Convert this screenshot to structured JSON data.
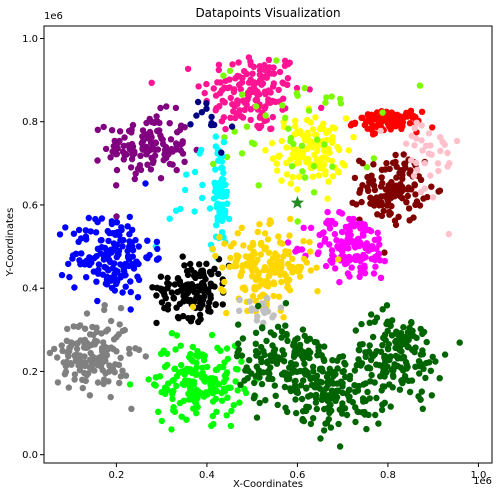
{
  "chart_data": {
    "type": "scatter",
    "title": "Datapoints Visualization",
    "xlabel": "X-Coordinates",
    "ylabel": "Y-Coordinates",
    "x_offset_label": "1e6",
    "y_offset_label": "1e6",
    "xlim": [
      0.04,
      1.03
    ],
    "ylim": [
      -0.02,
      1.03
    ],
    "x_ticks": [
      0.2,
      0.4,
      0.6,
      0.8,
      1.0
    ],
    "x_tick_labels": [
      "0.2",
      "0.4",
      "0.6",
      "0.8",
      "1.0"
    ],
    "y_ticks": [
      0.0,
      0.2,
      0.4,
      0.6,
      0.8,
      1.0
    ],
    "y_tick_labels": [
      "0.0",
      "0.2",
      "0.4",
      "0.6",
      "0.8",
      "1.0"
    ],
    "grid": false,
    "legend": "none",
    "clusters": [
      {
        "color": "#ff1493",
        "center": [
          0.5,
          0.87
        ],
        "spread": [
          0.055,
          0.05
        ],
        "count": 150
      },
      {
        "color": "#800080",
        "center": [
          0.27,
          0.74
        ],
        "spread": [
          0.045,
          0.04
        ],
        "count": 130
      },
      {
        "color": "#ffff00",
        "center": [
          0.63,
          0.73
        ],
        "spread": [
          0.04,
          0.04
        ],
        "count": 120
      },
      {
        "color": "#ff0000",
        "center": [
          0.8,
          0.8
        ],
        "spread": [
          0.035,
          0.012
        ],
        "count": 110
      },
      {
        "color": "#7cfc00",
        "center": [
          0.6,
          0.78
        ],
        "spread": [
          0.09,
          0.08
        ],
        "count": 45
      },
      {
        "color": "#800000",
        "center": [
          0.81,
          0.64
        ],
        "spread": [
          0.035,
          0.04
        ],
        "count": 120
      },
      {
        "color": "#ffc0cb",
        "center": [
          0.88,
          0.71
        ],
        "spread": [
          0.04,
          0.06
        ],
        "count": 35
      },
      {
        "color": "#00ffff",
        "center": [
          0.43,
          0.62
        ],
        "spread": [
          0.01,
          0.06
        ],
        "count": 70
      },
      {
        "color": "#00ffff",
        "center": [
          0.35,
          0.61
        ],
        "spread": [
          0.04,
          0.05
        ],
        "count": 15
      },
      {
        "color": "#000080",
        "center": [
          0.4,
          0.79
        ],
        "spread": [
          0.025,
          0.04
        ],
        "count": 12
      },
      {
        "color": "#0000ff",
        "center": [
          0.19,
          0.48
        ],
        "spread": [
          0.045,
          0.05
        ],
        "count": 160
      },
      {
        "color": "#ff00ff",
        "center": [
          0.72,
          0.5
        ],
        "spread": [
          0.045,
          0.04
        ],
        "count": 140
      },
      {
        "color": "#000000",
        "center": [
          0.37,
          0.4
        ],
        "spread": [
          0.04,
          0.035
        ],
        "count": 130
      },
      {
        "color": "#ffd700",
        "center": [
          0.53,
          0.45
        ],
        "spread": [
          0.05,
          0.045
        ],
        "count": 170
      },
      {
        "color": "#c0c0c0",
        "center": [
          0.51,
          0.34
        ],
        "spread": [
          0.03,
          0.02
        ],
        "count": 20
      },
      {
        "color": "#808080",
        "center": [
          0.15,
          0.24
        ],
        "spread": [
          0.04,
          0.045
        ],
        "count": 160
      },
      {
        "color": "#00ff00",
        "center": [
          0.38,
          0.18
        ],
        "spread": [
          0.05,
          0.045
        ],
        "count": 170
      },
      {
        "color": "#006400",
        "center": [
          0.57,
          0.22
        ],
        "spread": [
          0.05,
          0.05
        ],
        "count": 170
      },
      {
        "color": "#006400",
        "center": [
          0.69,
          0.15
        ],
        "spread": [
          0.05,
          0.045
        ],
        "count": 140
      },
      {
        "color": "#006400",
        "center": [
          0.82,
          0.24
        ],
        "spread": [
          0.05,
          0.05
        ],
        "count": 160
      }
    ],
    "centroid_marker": {
      "shape": "star",
      "color": "#228b22",
      "x": 0.6,
      "y": 0.605
    }
  }
}
